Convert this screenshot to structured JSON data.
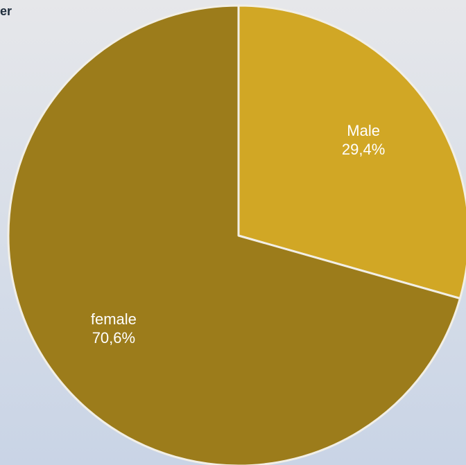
{
  "chart_data": {
    "type": "pie",
    "title": "er",
    "slices": [
      {
        "label": "Male",
        "value": 29.4,
        "value_text": "29,4%",
        "color": "#D1A725"
      },
      {
        "label": "female",
        "value": 70.6,
        "value_text": "70,6%",
        "color": "#9C7C1B"
      }
    ],
    "start_angle": "12 o'clock",
    "direction": "clockwise",
    "legend": "none",
    "slice_border_color": "#F2EFE6"
  }
}
